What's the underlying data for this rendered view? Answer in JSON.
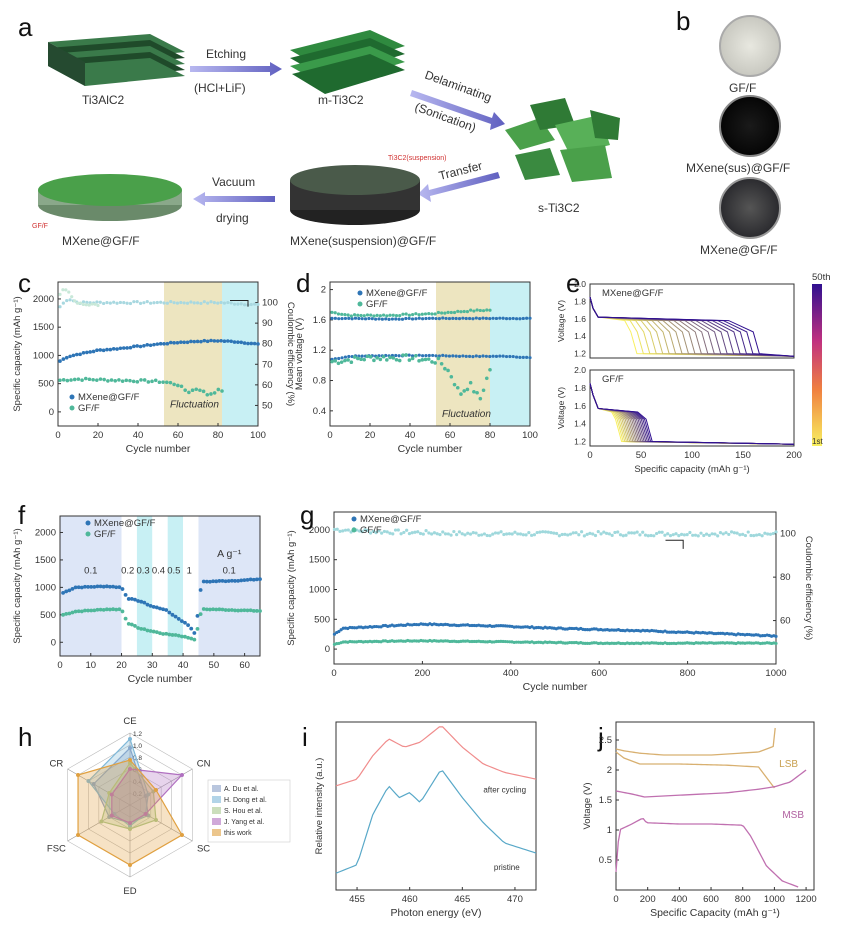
{
  "panel_a": {
    "letter": "a",
    "nodes": [
      "Ti3AlC2",
      "m-Ti3C2",
      "s-Ti3C2",
      "MXene(suspension)@GF/F",
      "MXene@GF/F"
    ],
    "steps": [
      {
        "top": "Etching",
        "bottom": "(HCl+LiF)"
      },
      {
        "top": "Delaminating",
        "bottom": "(Sonication)"
      },
      {
        "top": "Transfer",
        "bottom": ""
      },
      {
        "top": "Vacuum",
        "bottom": "drying"
      }
    ],
    "annot_suspension": "Ti3C2(suspension)",
    "annot_gff": "GF/F"
  },
  "panel_b": {
    "letter": "b",
    "items": [
      {
        "label": "GF/F",
        "color": "#d8d8d0"
      },
      {
        "label": "MXene(sus)@GF/F",
        "color": "#0d0d0d"
      },
      {
        "label": "MXene@GF/F",
        "color": "#3c3c40"
      }
    ]
  },
  "colors": {
    "mxene": "#2e75b6",
    "gff": "#4fb89a",
    "fluct": "#e8dfb0",
    "cyan": "#c8f0f4",
    "blue_band": "#dde6f7"
  },
  "chart_data": [
    {
      "id": "c",
      "letter": "c",
      "type": "scatter",
      "xlabel": "Cycle number",
      "ylabel": "Specific capacity (mAh g⁻¹)",
      "y2label": "Coulombic efficiency (%)",
      "xlim": [
        0,
        100
      ],
      "ylim": [
        -250,
        2300
      ],
      "y2lim": [
        40,
        110
      ],
      "xticks": [
        0,
        20,
        40,
        60,
        80,
        100
      ],
      "yticks": [
        0,
        500,
        1000,
        1500,
        2000
      ],
      "y2ticks": [
        50,
        60,
        70,
        80,
        90,
        100
      ],
      "legend": [
        "MXene@GF/F",
        "GF/F"
      ],
      "annotation": "Fluctuation",
      "series": [
        {
          "name": "MXene@GF/F",
          "x": [
            1,
            5,
            10,
            20,
            30,
            40,
            50,
            60,
            70,
            80,
            90,
            100
          ],
          "y": [
            900,
            980,
            1020,
            1090,
            1120,
            1160,
            1200,
            1230,
            1250,
            1260,
            1240,
            1200
          ]
        },
        {
          "name": "GF/F",
          "x": [
            1,
            5,
            10,
            20,
            30,
            40,
            50,
            55,
            60,
            65,
            70,
            75,
            80
          ],
          "y": [
            560,
            570,
            580,
            570,
            560,
            550,
            540,
            520,
            480,
            350,
            420,
            300,
            380
          ]
        },
        {
          "name": "CE MXene@GF/F",
          "x": [
            1,
            5,
            10,
            20,
            40,
            60,
            80,
            100
          ],
          "y": [
            98,
            102,
            100,
            100,
            100,
            100,
            100,
            99
          ]
        },
        {
          "name": "CE GF/F",
          "x": [
            1,
            3,
            5,
            8,
            12,
            20
          ],
          "y": [
            104,
            107,
            106,
            101,
            99,
            99
          ]
        }
      ]
    },
    {
      "id": "d",
      "letter": "d",
      "type": "scatter",
      "xlabel": "Cycle number",
      "ylabel": "Mean voltage (V)",
      "xlim": [
        0,
        100
      ],
      "ylim": [
        0.2,
        2.1
      ],
      "xticks": [
        0,
        20,
        40,
        60,
        80,
        100
      ],
      "yticks": [
        0.4,
        0.8,
        1.2,
        1.6,
        2.0
      ],
      "legend": [
        "MXene@GF/F",
        "GF/F"
      ],
      "annotation": "Fluctuation",
      "series": [
        {
          "name": "MXene@GF/F charge",
          "x": [
            1,
            10,
            30,
            50,
            70,
            90,
            100
          ],
          "y": [
            1.62,
            1.62,
            1.61,
            1.62,
            1.62,
            1.62,
            1.62
          ]
        },
        {
          "name": "GF/F charge",
          "x": [
            1,
            10,
            30,
            50,
            60,
            70,
            80
          ],
          "y": [
            1.7,
            1.66,
            1.66,
            1.68,
            1.7,
            1.72,
            1.73
          ]
        },
        {
          "name": "MXene@GF/F discharge",
          "x": [
            1,
            10,
            30,
            50,
            70,
            90,
            100
          ],
          "y": [
            1.08,
            1.12,
            1.13,
            1.13,
            1.12,
            1.12,
            1.1
          ]
        },
        {
          "name": "GF/F discharge",
          "x": [
            1,
            20,
            40,
            55,
            60,
            65,
            70,
            75,
            80
          ],
          "y": [
            1.05,
            1.1,
            1.1,
            1.05,
            0.9,
            0.62,
            0.75,
            0.55,
            0.95
          ]
        }
      ]
    },
    {
      "id": "e",
      "letter": "e",
      "type": "line",
      "xlabel": "Specific capacity (mAh g⁻¹)",
      "ylabel": "Voltage (V)",
      "xlim": [
        0,
        200
      ],
      "ylim": [
        1.15,
        2.0
      ],
      "xticks": [
        0,
        50,
        100,
        150,
        200
      ],
      "yticks": [
        1.2,
        1.4,
        1.6,
        1.8,
        2.0
      ],
      "subplots": [
        {
          "label": "MXene@GF/F",
          "plateau": 1.6,
          "cap_first": 40,
          "cap_last": 160
        },
        {
          "label": "GF/F",
          "plateau": 1.55,
          "cap_first": 25,
          "cap_last": 55
        }
      ],
      "colorbar": {
        "top": "50th",
        "bottom": "1st"
      }
    },
    {
      "id": "f",
      "letter": "f",
      "type": "scatter",
      "xlabel": "Cycle number",
      "ylabel": "Specific capacity (mAh g⁻¹)",
      "xlim": [
        0,
        65
      ],
      "ylim": [
        -250,
        2300
      ],
      "xticks": [
        0,
        10,
        20,
        30,
        40,
        50,
        60
      ],
      "yticks": [
        0,
        500,
        1000,
        1500,
        2000
      ],
      "legend": [
        "MXene@GF/F",
        "GF/F"
      ],
      "rates": [
        "0.1",
        "0.2",
        "0.3",
        "0.4",
        "0.5",
        "1",
        "0.1"
      ],
      "unit": "A g⁻¹",
      "series": [
        {
          "name": "MXene@GF/F",
          "x": [
            1,
            5,
            10,
            15,
            20,
            22,
            26,
            30,
            34,
            38,
            42,
            44,
            46,
            50,
            55,
            60,
            65
          ],
          "y": [
            900,
            1000,
            1010,
            1020,
            1000,
            800,
            750,
            650,
            600,
            450,
            300,
            150,
            1100,
            1110,
            1120,
            1130,
            1150
          ]
        },
        {
          "name": "GF/F",
          "x": [
            1,
            5,
            10,
            15,
            20,
            22,
            26,
            30,
            34,
            38,
            42,
            44,
            46,
            50,
            55,
            60,
            65
          ],
          "y": [
            500,
            560,
            580,
            600,
            600,
            350,
            250,
            200,
            150,
            130,
            80,
            50,
            600,
            600,
            590,
            580,
            570
          ]
        }
      ]
    },
    {
      "id": "g",
      "letter": "g",
      "type": "scatter",
      "xlabel": "Cycle number",
      "ylabel": "Specific capacity (mAh g⁻¹)",
      "y2label": "Coulombic efficiency (%)",
      "xlim": [
        0,
        1000
      ],
      "ylim": [
        -250,
        2300
      ],
      "y2lim": [
        40,
        110
      ],
      "xticks": [
        0,
        200,
        400,
        600,
        800,
        1000
      ],
      "yticks": [
        0,
        500,
        1000,
        1500,
        2000
      ],
      "y2ticks": [
        60,
        80,
        100
      ],
      "legend": [
        "MXene@GF/F",
        "GF/F"
      ],
      "series": [
        {
          "name": "MXene@GF/F",
          "x": [
            1,
            20,
            100,
            200,
            300,
            400,
            500,
            600,
            700,
            800,
            900,
            1000
          ],
          "y": [
            250,
            350,
            380,
            420,
            400,
            380,
            350,
            330,
            310,
            280,
            250,
            220
          ]
        },
        {
          "name": "GF/F",
          "x": [
            1,
            20,
            100,
            200,
            300,
            400,
            500,
            600,
            700,
            800,
            900,
            1000
          ],
          "y": [
            80,
            120,
            130,
            140,
            130,
            120,
            110,
            100,
            100,
            100,
            100,
            100
          ]
        },
        {
          "name": "CE",
          "x": [
            1,
            100,
            300,
            500,
            700,
            900,
            1000
          ],
          "y": [
            102,
            101,
            100,
            100,
            100,
            100,
            100
          ]
        }
      ]
    },
    {
      "id": "h",
      "letter": "h",
      "type": "radar",
      "axes": [
        "CE",
        "CN",
        "SC",
        "ED",
        "FSC",
        "CR"
      ],
      "ticks": [
        "0.2",
        "0.4",
        "0.6",
        "0.8",
        "1.0",
        "1.2"
      ],
      "rmax": 1.2,
      "series": [
        {
          "name": "A. Du et al.",
          "color": "#8aa0c8",
          "values": [
            0.95,
            0.3,
            0.35,
            0.3,
            0.4,
            0.7
          ]
        },
        {
          "name": "H. Dong et al.",
          "color": "#7fb8d8",
          "values": [
            1.1,
            0.35,
            0.3,
            0.35,
            0.3,
            0.8
          ]
        },
        {
          "name": "S. Hou et al.",
          "color": "#a8c890",
          "values": [
            0.7,
            0.45,
            0.5,
            0.4,
            0.55,
            0.4
          ]
        },
        {
          "name": "J. Yang et al.",
          "color": "#b070c0",
          "values": [
            0.6,
            1.0,
            0.3,
            0.3,
            0.35,
            0.35
          ]
        },
        {
          "name": "this work",
          "color": "#e0a040",
          "values": [
            0.75,
            0.5,
            1.0,
            1.0,
            1.0,
            1.0
          ]
        }
      ]
    },
    {
      "id": "i",
      "letter": "i",
      "type": "line",
      "xlabel": "Photon energy (eV)",
      "ylabel": "Relative intensity (a.u.)",
      "xlim": [
        453,
        472
      ],
      "xticks": [
        455,
        460,
        465,
        470
      ],
      "series": [
        {
          "name": "after cycling",
          "color": "#f08c8c",
          "x": [
            453,
            455,
            456.5,
            458,
            459.5,
            461,
            463,
            465,
            467,
            469,
            472
          ],
          "y": [
            0.62,
            0.66,
            0.8,
            0.9,
            0.85,
            0.88,
            0.98,
            0.85,
            0.75,
            0.7,
            0.66
          ]
        },
        {
          "name": "pristine",
          "color": "#58a8c8",
          "x": [
            453,
            455,
            456.5,
            458,
            459,
            460,
            461,
            463,
            465,
            467,
            469,
            472
          ],
          "y": [
            0.1,
            0.15,
            0.45,
            0.62,
            0.55,
            0.58,
            0.52,
            0.72,
            0.55,
            0.4,
            0.28,
            0.22
          ]
        }
      ]
    },
    {
      "id": "j",
      "letter": "j",
      "type": "line",
      "xlabel": "Specific Capacity (mAh g⁻¹)",
      "ylabel": "Voltage (V)",
      "xlim": [
        0,
        1250
      ],
      "ylim": [
        0,
        2.8
      ],
      "xticks": [
        0,
        200,
        400,
        600,
        800,
        1000,
        1200
      ],
      "yticks": [
        0.5,
        1.0,
        1.5,
        2.0,
        2.5
      ],
      "series": [
        {
          "name": "LSB",
          "color": "#d8b070",
          "x": [
            0,
            50,
            150,
            300,
            600,
            900,
            1000,
            1005
          ],
          "y": [
            2.35,
            2.32,
            2.28,
            2.25,
            2.25,
            2.3,
            2.4,
            2.7
          ]
        },
        {
          "name": "LSB discharge",
          "color": "#d8b070",
          "x": [
            0,
            50,
            150,
            200,
            400,
            700,
            900,
            1000
          ],
          "y": [
            2.3,
            2.2,
            2.1,
            2.1,
            2.1,
            2.08,
            2.05,
            1.7
          ]
        },
        {
          "name": "MSB",
          "color": "#c070b0",
          "x": [
            0,
            100,
            180,
            400,
            700,
            900,
            1000,
            1100,
            1200
          ],
          "y": [
            1.65,
            1.6,
            1.55,
            1.58,
            1.62,
            1.68,
            1.72,
            1.8,
            2.0
          ]
        },
        {
          "name": "MSB discharge",
          "color": "#c070b0",
          "x": [
            0,
            20,
            100,
            170,
            180,
            200,
            400,
            600,
            800,
            850,
            950,
            1050,
            1150
          ],
          "y": [
            0.3,
            1.0,
            1.1,
            1.2,
            1.15,
            1.12,
            1.1,
            1.1,
            1.08,
            0.9,
            0.4,
            0.15,
            0.05
          ]
        }
      ]
    }
  ]
}
